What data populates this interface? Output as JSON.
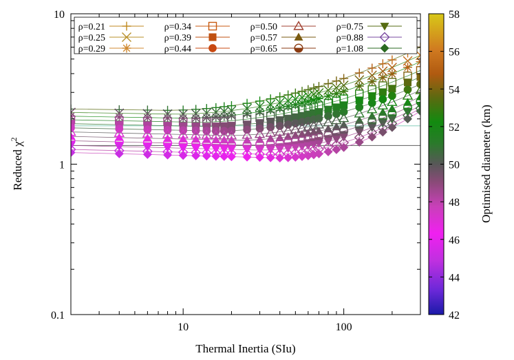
{
  "chart_data": {
    "type": "scatter",
    "xlabel": "Thermal Inertia (SIu)",
    "ylabel": "Reduced χ",
    "ylabel_sup": "2",
    "xscale": "log",
    "yscale": "log",
    "xlim": [
      2,
      300
    ],
    "ylim": [
      0.1,
      10
    ],
    "x_ticks": [
      {
        "value": 10,
        "label": "10"
      },
      {
        "value": 100,
        "label": "100"
      }
    ],
    "y_ticks": [
      {
        "value": 0.1,
        "label": "0.1"
      },
      {
        "value": 1,
        "label": "1"
      },
      {
        "value": 10,
        "label": "10"
      }
    ],
    "colorbar": {
      "label": "Optimised diameter (km)",
      "range": [
        42,
        58
      ],
      "ticks": [
        "42",
        "44",
        "46",
        "48",
        "50",
        "52",
        "54",
        "56",
        "58"
      ]
    },
    "reference_lines": [
      {
        "y": 1.8,
        "color": "#9fd8c8"
      },
      {
        "y": 1.33,
        "color": "#707070"
      }
    ],
    "x_values": [
      2,
      4,
      6,
      8,
      10,
      12,
      14,
      16,
      18,
      20,
      25,
      30,
      35,
      40,
      45,
      50,
      55,
      60,
      65,
      70,
      80,
      90,
      100,
      125,
      150,
      175,
      200,
      250,
      300
    ],
    "series": [
      {
        "name": "ρ=0.21",
        "marker": "plus",
        "color": "#c08a20",
        "chi_min": 2.28,
        "x_min": 8,
        "chi_end": 6.0,
        "d_low": 50.5,
        "d_high": 56.5
      },
      {
        "name": "ρ=0.25",
        "marker": "cross",
        "color": "#b8902a",
        "chi_min": 2.15,
        "x_min": 9,
        "chi_end": 5.3,
        "d_low": 49.5,
        "d_high": 56.0
      },
      {
        "name": "ρ=0.29",
        "marker": "asterisk",
        "color": "#d08a30",
        "chi_min": 2.02,
        "x_min": 10,
        "chi_end": 4.8,
        "d_low": 49.0,
        "d_high": 55.5
      },
      {
        "name": "ρ=0.34",
        "marker": "square-open",
        "color": "#c85a10",
        "chi_min": 1.9,
        "x_min": 12,
        "chi_end": 4.2,
        "d_low": 48.5,
        "d_high": 54.5
      },
      {
        "name": "ρ=0.39",
        "marker": "square-filled",
        "color": "#c05010",
        "chi_min": 1.78,
        "x_min": 14,
        "chi_end": 3.8,
        "d_low": 48.0,
        "d_high": 54.0
      },
      {
        "name": "ρ=0.44",
        "marker": "circle-filled",
        "color": "#c84810",
        "chi_min": 1.66,
        "x_min": 16,
        "chi_end": 3.4,
        "d_low": 47.5,
        "d_high": 53.5
      },
      {
        "name": "ρ=0.50",
        "marker": "triangle-open",
        "color": "#a04030",
        "chi_min": 1.55,
        "x_min": 19,
        "chi_end": 3.1,
        "d_low": 47.0,
        "d_high": 53.0
      },
      {
        "name": "ρ=0.57",
        "marker": "triangle-filled",
        "color": "#7a5a10",
        "chi_min": 1.44,
        "x_min": 22,
        "chi_end": 2.8,
        "d_low": 46.5,
        "d_high": 52.5
      },
      {
        "name": "ρ=0.65",
        "marker": "circle-half",
        "color": "#8a3a10",
        "chi_min": 1.34,
        "x_min": 26,
        "chi_end": 2.6,
        "d_low": 46.0,
        "d_high": 52.0
      },
      {
        "name": "ρ=0.75",
        "marker": "triangle-down",
        "color": "#556b10",
        "chi_min": 1.24,
        "x_min": 30,
        "chi_end": 2.45,
        "d_low": 45.5,
        "d_high": 51.5
      },
      {
        "name": "ρ=0.88",
        "marker": "diamond-open",
        "color": "#7a4aa0",
        "chi_min": 1.16,
        "x_min": 35,
        "chi_end": 2.35,
        "d_low": 45.0,
        "d_high": 51.0
      },
      {
        "name": "ρ=1.08",
        "marker": "diamond-filled",
        "color": "#2a6a20",
        "chi_min": 1.1,
        "x_min": 40,
        "chi_end": 2.25,
        "d_low": 45.0,
        "d_high": 50.5
      }
    ]
  }
}
